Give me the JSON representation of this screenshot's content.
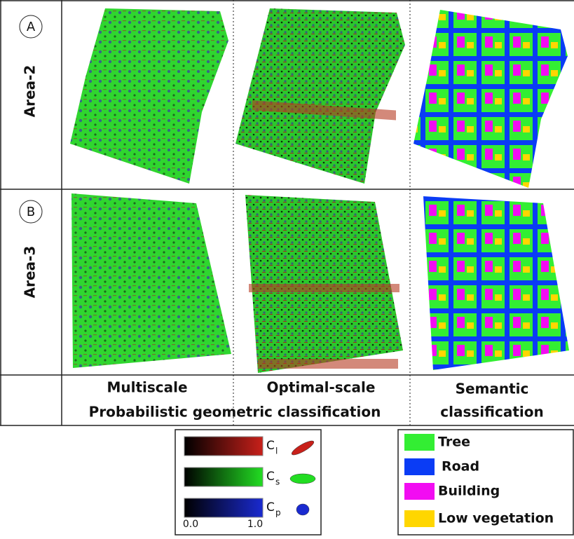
{
  "panels": {
    "rows": [
      {
        "marker": "A",
        "label": "Area-2"
      },
      {
        "marker": "B",
        "label": "Area-3"
      }
    ],
    "columns": {
      "multiscale": "Multiscale",
      "optimal": "Optimal-scale",
      "group": "Probabilistic geometric classification",
      "semantic": [
        "Semantic",
        "classification"
      ]
    }
  },
  "geometric_legend": {
    "entries": [
      {
        "symbol": "C",
        "subscript": "l",
        "color": "#c8201a"
      },
      {
        "symbol": "C",
        "subscript": "s",
        "color": "#22dd22"
      },
      {
        "symbol": "C",
        "subscript": "p",
        "color": "#1a2ad0"
      }
    ],
    "scale": [
      "0.0",
      "1.0"
    ]
  },
  "semantic_legend": [
    {
      "label": "Tree",
      "color": "#33ee33"
    },
    {
      "label": "Road",
      "color": "#0a3cf5"
    },
    {
      "label": "Building",
      "color": "#f20cf2"
    },
    {
      "label": "Low vegetation",
      "color": "#ffd600"
    }
  ]
}
